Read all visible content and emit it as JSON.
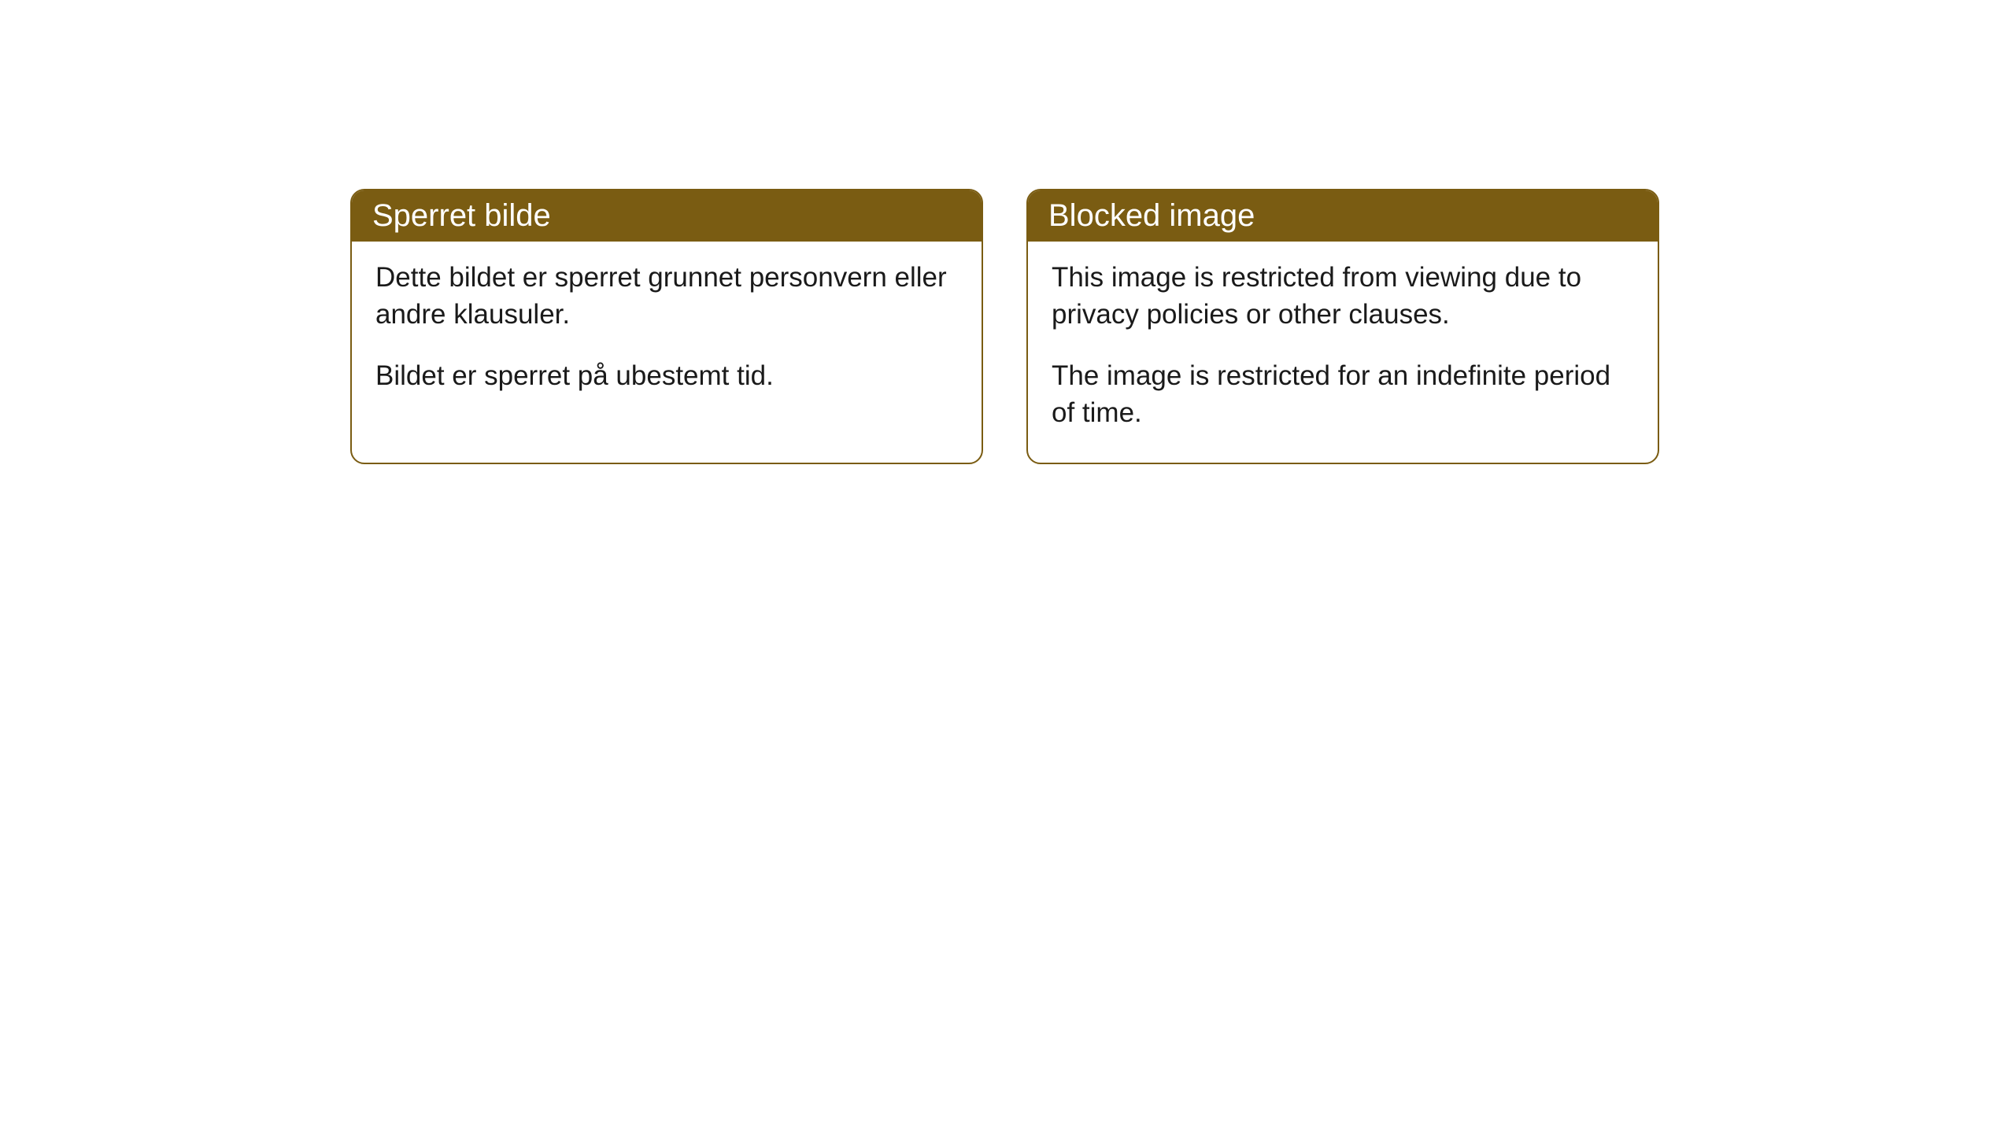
{
  "cards": [
    {
      "title": "Sperret bilde",
      "para1": "Dette bildet er sperret grunnet personvern eller andre klausuler.",
      "para2": "Bildet er sperret på ubestemt tid."
    },
    {
      "title": "Blocked image",
      "para1": "This image is restricted from viewing due to privacy policies or other clauses.",
      "para2": "The image is restricted for an indefinite period of time."
    }
  ],
  "styling": {
    "header_bg": "#7a5c12",
    "header_text_color": "#ffffff",
    "border_color": "#7a5c12",
    "body_text_color": "#1a1a1a",
    "page_bg": "#ffffff",
    "border_radius": 18,
    "title_fontsize": 40,
    "body_fontsize": 35
  }
}
